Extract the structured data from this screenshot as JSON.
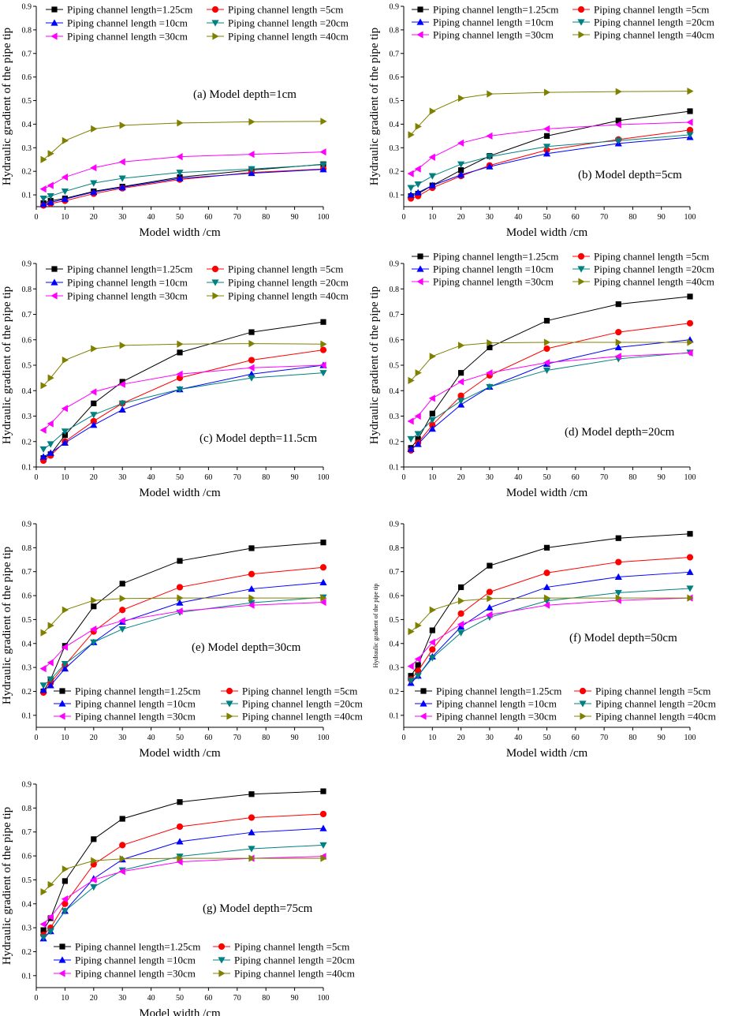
{
  "chart_data": [
    {
      "type": "line",
      "panel": "a",
      "title": "(a) Model depth=1cm",
      "xlabel": "Model width /cm",
      "ylabel": "Hydraulic gradient of the pipe tip",
      "xlim": [
        0,
        100
      ],
      "ylim": [
        0.05,
        0.9
      ],
      "xticks": [
        0,
        10,
        20,
        30,
        40,
        50,
        60,
        70,
        80,
        90,
        100
      ],
      "yticks": [
        0.1,
        0.2,
        0.3,
        0.4,
        0.5,
        0.6,
        0.7,
        0.8,
        0.9
      ],
      "legend_position": "top",
      "x": [
        2.5,
        5,
        10,
        20,
        30,
        50,
        75,
        100
      ],
      "series": [
        {
          "name": "Piping channel length=1.25cm",
          "color": "#000000",
          "marker": "square",
          "values": [
            0.065,
            0.075,
            0.085,
            0.115,
            0.135,
            0.175,
            0.205,
            0.23
          ]
        },
        {
          "name": "Piping channel length =5cm",
          "color": "#ff0000",
          "marker": "circle",
          "values": [
            0.055,
            0.063,
            0.075,
            0.105,
            0.128,
            0.165,
            0.195,
            0.21
          ]
        },
        {
          "name": "Piping channel length =10cm",
          "color": "#0000ff",
          "marker": "triangle-up",
          "values": [
            0.06,
            0.068,
            0.082,
            0.112,
            0.132,
            0.17,
            0.192,
            0.208
          ]
        },
        {
          "name": "Piping channel length =20cm",
          "color": "#008080",
          "marker": "triangle-down",
          "values": [
            0.085,
            0.095,
            0.115,
            0.15,
            0.17,
            0.195,
            0.21,
            0.228
          ]
        },
        {
          "name": "Piping channel length =30cm",
          "color": "#ff00ff",
          "marker": "triangle-left",
          "values": [
            0.125,
            0.14,
            0.175,
            0.215,
            0.24,
            0.262,
            0.272,
            0.282
          ]
        },
        {
          "name": "Piping channel length =40cm",
          "color": "#808000",
          "marker": "triangle-right",
          "values": [
            0.25,
            0.275,
            0.33,
            0.38,
            0.395,
            0.405,
            0.41,
            0.412
          ]
        }
      ]
    },
    {
      "type": "line",
      "panel": "b",
      "title": "(b) Model depth=5cm",
      "xlabel": "Model width /cm",
      "ylabel": "Hydraulic gradient of the pipe tip",
      "xlim": [
        0,
        100
      ],
      "ylim": [
        0.05,
        0.9
      ],
      "xticks": [
        0,
        10,
        20,
        30,
        40,
        50,
        60,
        70,
        80,
        90,
        100
      ],
      "yticks": [
        0.1,
        0.2,
        0.3,
        0.4,
        0.5,
        0.6,
        0.7,
        0.8,
        0.9
      ],
      "legend_position": "top",
      "x": [
        2.5,
        5,
        10,
        20,
        30,
        50,
        75,
        100
      ],
      "series": [
        {
          "name": "Piping channel length=1.25cm",
          "color": "#000000",
          "marker": "square",
          "values": [
            0.095,
            0.105,
            0.14,
            0.205,
            0.265,
            0.35,
            0.415,
            0.455
          ]
        },
        {
          "name": "Piping channel length =5cm",
          "color": "#ff0000",
          "marker": "circle",
          "values": [
            0.085,
            0.095,
            0.13,
            0.18,
            0.225,
            0.29,
            0.335,
            0.375
          ]
        },
        {
          "name": "Piping channel length =10cm",
          "color": "#0000ff",
          "marker": "triangle-up",
          "values": [
            0.1,
            0.11,
            0.14,
            0.185,
            0.22,
            0.275,
            0.318,
            0.345
          ]
        },
        {
          "name": "Piping channel length =20cm",
          "color": "#008080",
          "marker": "triangle-down",
          "values": [
            0.13,
            0.145,
            0.18,
            0.23,
            0.262,
            0.305,
            0.33,
            0.355
          ]
        },
        {
          "name": "Piping channel length =30cm",
          "color": "#ff00ff",
          "marker": "triangle-left",
          "values": [
            0.19,
            0.21,
            0.26,
            0.32,
            0.35,
            0.38,
            0.398,
            0.408
          ]
        },
        {
          "name": "Piping channel length =40cm",
          "color": "#808000",
          "marker": "triangle-right",
          "values": [
            0.355,
            0.39,
            0.455,
            0.51,
            0.528,
            0.535,
            0.538,
            0.54
          ]
        }
      ]
    },
    {
      "type": "line",
      "panel": "c",
      "title": "(c) Model depth=11.5cm",
      "xlabel": "Model width /cm",
      "ylabel": "Hydraulic gradient of the pipe tip",
      "xlim": [
        0,
        100
      ],
      "ylim": [
        0.1,
        0.9
      ],
      "xticks": [
        0,
        10,
        20,
        30,
        40,
        50,
        60,
        70,
        80,
        90,
        100
      ],
      "yticks": [
        0.1,
        0.2,
        0.3,
        0.4,
        0.5,
        0.6,
        0.7,
        0.8,
        0.9
      ],
      "legend_position": "top",
      "x": [
        2.5,
        5,
        10,
        20,
        30,
        50,
        75,
        100
      ],
      "series": [
        {
          "name": "Piping channel length=1.25cm",
          "color": "#000000",
          "marker": "square",
          "values": [
            0.135,
            0.15,
            0.225,
            0.35,
            0.435,
            0.55,
            0.63,
            0.67
          ]
        },
        {
          "name": "Piping channel length =5cm",
          "color": "#ff0000",
          "marker": "circle",
          "values": [
            0.125,
            0.145,
            0.2,
            0.28,
            0.35,
            0.45,
            0.52,
            0.56
          ]
        },
        {
          "name": "Piping channel length =10cm",
          "color": "#0000ff",
          "marker": "triangle-up",
          "values": [
            0.14,
            0.155,
            0.195,
            0.265,
            0.325,
            0.405,
            0.465,
            0.5
          ]
        },
        {
          "name": "Piping channel length =20cm",
          "color": "#008080",
          "marker": "triangle-down",
          "values": [
            0.17,
            0.19,
            0.24,
            0.305,
            0.35,
            0.405,
            0.45,
            0.47
          ]
        },
        {
          "name": "Piping channel length =30cm",
          "color": "#ff00ff",
          "marker": "triangle-left",
          "values": [
            0.245,
            0.27,
            0.33,
            0.395,
            0.425,
            0.465,
            0.49,
            0.5
          ]
        },
        {
          "name": "Piping channel length =40cm",
          "color": "#808000",
          "marker": "triangle-right",
          "values": [
            0.42,
            0.45,
            0.52,
            0.565,
            0.578,
            0.583,
            0.585,
            0.583
          ]
        }
      ]
    },
    {
      "type": "line",
      "panel": "d",
      "title": "(d) Model depth=20cm",
      "xlabel": "Model width /cm",
      "ylabel": "Hydraulic gradient of the pipe tip",
      "xlim": [
        0,
        100
      ],
      "ylim": [
        0.1,
        0.9
      ],
      "xticks": [
        0,
        10,
        20,
        30,
        40,
        50,
        60,
        70,
        80,
        90,
        100
      ],
      "yticks": [
        0.1,
        0.2,
        0.3,
        0.4,
        0.5,
        0.6,
        0.7,
        0.8,
        0.9
      ],
      "legend_position": "top",
      "x": [
        2.5,
        5,
        10,
        20,
        30,
        50,
        75,
        100
      ],
      "series": [
        {
          "name": "Piping channel length=1.25cm",
          "color": "#000000",
          "marker": "square",
          "values": [
            0.175,
            0.21,
            0.31,
            0.47,
            0.57,
            0.675,
            0.74,
            0.77
          ]
        },
        {
          "name": "Piping channel length =5cm",
          "color": "#ff0000",
          "marker": "circle",
          "values": [
            0.165,
            0.195,
            0.265,
            0.38,
            0.46,
            0.565,
            0.63,
            0.665
          ]
        },
        {
          "name": "Piping channel length =10cm",
          "color": "#0000ff",
          "marker": "triangle-up",
          "values": [
            0.17,
            0.19,
            0.25,
            0.345,
            0.415,
            0.505,
            0.57,
            0.6
          ]
        },
        {
          "name": "Piping channel length =20cm",
          "color": "#008080",
          "marker": "triangle-down",
          "values": [
            0.21,
            0.23,
            0.285,
            0.36,
            0.415,
            0.48,
            0.525,
            0.55
          ]
        },
        {
          "name": "Piping channel length =30cm",
          "color": "#ff00ff",
          "marker": "triangle-left",
          "values": [
            0.28,
            0.3,
            0.37,
            0.435,
            0.47,
            0.51,
            0.535,
            0.548
          ]
        },
        {
          "name": "Piping channel length =40cm",
          "color": "#808000",
          "marker": "triangle-right",
          "values": [
            0.44,
            0.47,
            0.535,
            0.578,
            0.588,
            0.59,
            0.59,
            0.59
          ]
        }
      ]
    },
    {
      "type": "line",
      "panel": "e",
      "title": "(e) Model depth=30cm",
      "xlabel": "Model width /cm",
      "ylabel": "Hydraulic gradient of the pipe tip",
      "xlim": [
        0,
        100
      ],
      "ylim": [
        0.05,
        0.9
      ],
      "xticks": [
        0,
        10,
        20,
        30,
        40,
        50,
        60,
        70,
        80,
        90,
        100
      ],
      "yticks": [
        0.1,
        0.2,
        0.3,
        0.4,
        0.5,
        0.6,
        0.7,
        0.8,
        0.9
      ],
      "legend_position": "bottom",
      "x": [
        2.5,
        5,
        10,
        20,
        30,
        50,
        75,
        100
      ],
      "series": [
        {
          "name": "Piping channel length=1.25cm",
          "color": "#000000",
          "marker": "square",
          "values": [
            0.2,
            0.25,
            0.39,
            0.555,
            0.65,
            0.745,
            0.798,
            0.822
          ]
        },
        {
          "name": "Piping channel length =5cm",
          "color": "#ff0000",
          "marker": "circle",
          "values": [
            0.195,
            0.235,
            0.31,
            0.45,
            0.54,
            0.635,
            0.69,
            0.718
          ]
        },
        {
          "name": "Piping channel length =10cm",
          "color": "#0000ff",
          "marker": "triangle-up",
          "values": [
            0.205,
            0.225,
            0.295,
            0.405,
            0.49,
            0.57,
            0.628,
            0.655
          ]
        },
        {
          "name": "Piping channel length =20cm",
          "color": "#008080",
          "marker": "triangle-down",
          "values": [
            0.225,
            0.25,
            0.315,
            0.405,
            0.46,
            0.53,
            0.57,
            0.593
          ]
        },
        {
          "name": "Piping channel length =30cm",
          "color": "#ff00ff",
          "marker": "triangle-left",
          "values": [
            0.295,
            0.32,
            0.385,
            0.46,
            0.495,
            0.535,
            0.56,
            0.572
          ]
        },
        {
          "name": "Piping channel length =40cm",
          "color": "#808000",
          "marker": "triangle-right",
          "values": [
            0.445,
            0.475,
            0.54,
            0.58,
            0.588,
            0.59,
            0.59,
            0.59
          ]
        }
      ]
    },
    {
      "type": "line",
      "panel": "f",
      "title": "(f) Model depth=50cm",
      "xlabel": "Model width /cm",
      "ylabel": "Hydraulic gradient of the pipe tip",
      "xlim": [
        0,
        100
      ],
      "ylim": [
        0.05,
        0.9
      ],
      "xticks": [
        0,
        10,
        20,
        30,
        40,
        50,
        60,
        70,
        80,
        90,
        100
      ],
      "yticks": [
        0.1,
        0.2,
        0.3,
        0.4,
        0.5,
        0.6,
        0.7,
        0.8,
        0.9
      ],
      "legend_position": "bottom",
      "x": [
        2.5,
        5,
        10,
        20,
        30,
        50,
        75,
        100
      ],
      "series": [
        {
          "name": "Piping channel length=1.25cm",
          "color": "#000000",
          "marker": "square",
          "values": [
            0.265,
            0.31,
            0.455,
            0.635,
            0.725,
            0.8,
            0.84,
            0.858
          ]
        },
        {
          "name": "Piping channel length =5cm",
          "color": "#ff0000",
          "marker": "circle",
          "values": [
            0.25,
            0.285,
            0.375,
            0.525,
            0.615,
            0.695,
            0.74,
            0.76
          ]
        },
        {
          "name": "Piping channel length =10cm",
          "color": "#0000ff",
          "marker": "triangle-up",
          "values": [
            0.235,
            0.265,
            0.345,
            0.47,
            0.55,
            0.635,
            0.678,
            0.698
          ]
        },
        {
          "name": "Piping channel length =20cm",
          "color": "#008080",
          "marker": "triangle-down",
          "values": [
            0.245,
            0.265,
            0.34,
            0.445,
            0.51,
            0.578,
            0.612,
            0.63
          ]
        },
        {
          "name": "Piping channel length =30cm",
          "color": "#ff00ff",
          "marker": "triangle-left",
          "values": [
            0.305,
            0.335,
            0.405,
            0.48,
            0.52,
            0.56,
            0.58,
            0.59
          ]
        },
        {
          "name": "Piping channel length =40cm",
          "color": "#808000",
          "marker": "triangle-right",
          "values": [
            0.45,
            0.475,
            0.54,
            0.578,
            0.588,
            0.59,
            0.59,
            0.59
          ]
        }
      ]
    },
    {
      "type": "line",
      "panel": "g",
      "title": "(g) Model depth=75cm",
      "xlabel": "Model width /cm",
      "ylabel": "Hydraulic gradient of the pipe tip",
      "xlim": [
        0,
        100
      ],
      "ylim": [
        0.05,
        0.9
      ],
      "xticks": [
        0,
        10,
        20,
        30,
        40,
        50,
        60,
        70,
        80,
        90,
        100
      ],
      "yticks": [
        0.1,
        0.2,
        0.3,
        0.4,
        0.5,
        0.6,
        0.7,
        0.8,
        0.9
      ],
      "legend_position": "bottom",
      "x": [
        2.5,
        5,
        10,
        20,
        30,
        50,
        75,
        100
      ],
      "series": [
        {
          "name": "Piping channel length=1.25cm",
          "color": "#000000",
          "marker": "square",
          "values": [
            0.29,
            0.34,
            0.495,
            0.67,
            0.755,
            0.825,
            0.858,
            0.87
          ]
        },
        {
          "name": "Piping channel length =5cm",
          "color": "#ff0000",
          "marker": "circle",
          "values": [
            0.27,
            0.3,
            0.4,
            0.565,
            0.645,
            0.722,
            0.76,
            0.775
          ]
        },
        {
          "name": "Piping channel length =10cm",
          "color": "#0000ff",
          "marker": "triangle-up",
          "values": [
            0.255,
            0.285,
            0.37,
            0.505,
            0.585,
            0.66,
            0.698,
            0.715
          ]
        },
        {
          "name": "Piping channel length =20cm",
          "color": "#008080",
          "marker": "triangle-down",
          "values": [
            0.26,
            0.285,
            0.37,
            0.47,
            0.54,
            0.598,
            0.63,
            0.645
          ]
        },
        {
          "name": "Piping channel length =30cm",
          "color": "#ff00ff",
          "marker": "triangle-left",
          "values": [
            0.315,
            0.345,
            0.42,
            0.5,
            0.535,
            0.575,
            0.59,
            0.598
          ]
        },
        {
          "name": "Piping channel length =40cm",
          "color": "#808000",
          "marker": "triangle-right",
          "values": [
            0.45,
            0.48,
            0.545,
            0.58,
            0.588,
            0.59,
            0.59,
            0.59
          ]
        }
      ]
    }
  ]
}
